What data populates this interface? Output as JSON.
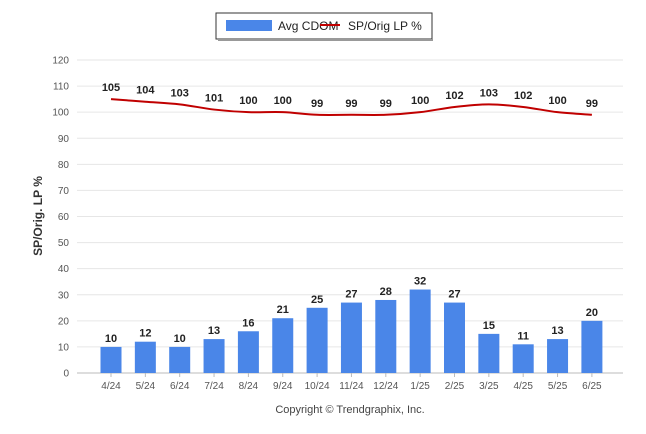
{
  "chart_data": {
    "type": "bar",
    "categories": [
      "4/24",
      "5/24",
      "6/24",
      "7/24",
      "8/24",
      "9/24",
      "10/24",
      "11/24",
      "12/24",
      "1/25",
      "2/25",
      "3/25",
      "4/25",
      "5/25",
      "6/25"
    ],
    "series": [
      {
        "name": "Avg CDOM",
        "type": "bar",
        "color": "#4a86e8",
        "values": [
          10,
          12,
          10,
          13,
          16,
          21,
          25,
          27,
          28,
          32,
          27,
          15,
          11,
          13,
          20
        ]
      },
      {
        "name": "SP/Orig LP %",
        "type": "line",
        "color": "#c00000",
        "values": [
          105,
          104,
          103,
          101,
          100,
          100,
          99,
          99,
          99,
          100,
          102,
          103,
          102,
          100,
          99
        ]
      }
    ],
    "ylabel": "SP/Orig. LP %",
    "ylim": [
      0,
      120
    ],
    "yticks": [
      0,
      10,
      20,
      30,
      40,
      50,
      60,
      70,
      80,
      90,
      100,
      110,
      120
    ],
    "grid": true,
    "legend_position": "top-center",
    "credit": "Copyright © Trendgraphix, Inc."
  }
}
